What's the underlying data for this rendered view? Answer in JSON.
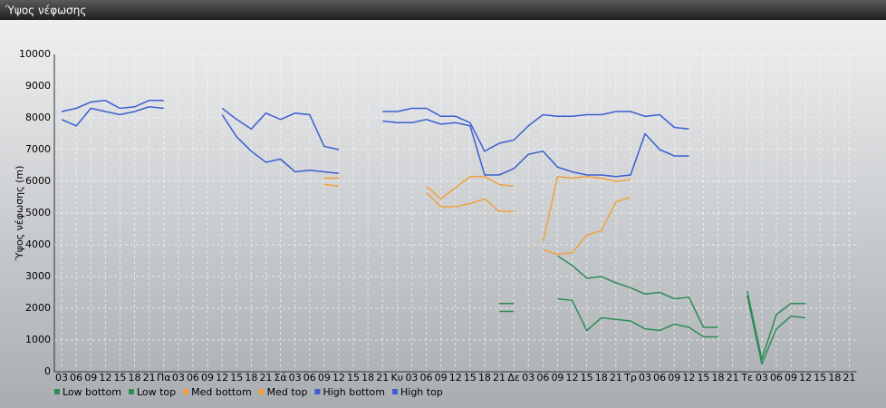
{
  "chart_data": {
    "type": "line",
    "title": "Ύψος νέφωσης",
    "y_label": "Ύψος νέφωσης (m)",
    "categories": [
      "03",
      "06",
      "09",
      "12",
      "15",
      "18",
      "21",
      "Πα",
      "03",
      "06",
      "09",
      "12",
      "15",
      "18",
      "21",
      "Σά",
      "03",
      "06",
      "09",
      "12",
      "15",
      "18",
      "21",
      "Κυ",
      "03",
      "06",
      "09",
      "12",
      "15",
      "18",
      "21",
      "Δε",
      "03",
      "06",
      "09",
      "12",
      "15",
      "18",
      "21",
      "Τρ",
      "03",
      "06",
      "09",
      "12",
      "15",
      "18",
      "21",
      "Τε",
      "03",
      "06",
      "09",
      "12",
      "15",
      "18",
      "21"
    ],
    "ylim": [
      0,
      10000
    ],
    "yticks": [
      0,
      1000,
      2000,
      3000,
      4000,
      5000,
      6000,
      7000,
      8000,
      9000,
      10000
    ],
    "grid": true,
    "series": [
      {
        "name": "Low bottom",
        "color": "#2e8b57",
        "values": [
          null,
          null,
          null,
          null,
          null,
          null,
          null,
          null,
          null,
          null,
          null,
          null,
          null,
          null,
          null,
          null,
          null,
          null,
          null,
          null,
          null,
          null,
          null,
          null,
          null,
          null,
          null,
          null,
          null,
          null,
          1900,
          1900,
          null,
          null,
          2300,
          2250,
          1300,
          1700,
          1650,
          1600,
          1350,
          1300,
          1500,
          1400,
          1100,
          1100,
          null,
          2400,
          250,
          1350,
          1750,
          1700,
          null,
          null,
          null
        ]
      },
      {
        "name": "Low top",
        "color": "#2e8b57",
        "values": [
          null,
          null,
          null,
          null,
          null,
          null,
          null,
          null,
          null,
          null,
          null,
          null,
          null,
          null,
          null,
          null,
          null,
          null,
          null,
          null,
          null,
          null,
          null,
          null,
          null,
          null,
          null,
          null,
          null,
          null,
          2150,
          2150,
          null,
          null,
          3650,
          3350,
          2950,
          3000,
          2800,
          2650,
          2450,
          2500,
          2300,
          2350,
          1400,
          1400,
          null,
          2550,
          400,
          1800,
          2150,
          2150,
          null,
          null,
          null
        ]
      },
      {
        "name": "Med bottom",
        "color": "#f0a040",
        "values": [
          null,
          null,
          null,
          null,
          null,
          null,
          null,
          null,
          null,
          null,
          null,
          null,
          null,
          null,
          null,
          null,
          null,
          null,
          5900,
          5850,
          null,
          null,
          null,
          null,
          null,
          5650,
          5200,
          5200,
          5300,
          5450,
          5050,
          5050,
          null,
          3850,
          3700,
          3750,
          4300,
          4450,
          5350,
          5500,
          null,
          null,
          null,
          null,
          null,
          null,
          null,
          null,
          null,
          null,
          null,
          null,
          null,
          null,
          null
        ]
      },
      {
        "name": "Med top",
        "color": "#f0a040",
        "values": [
          null,
          null,
          null,
          null,
          null,
          null,
          null,
          null,
          null,
          null,
          null,
          null,
          null,
          null,
          null,
          null,
          null,
          null,
          6100,
          6100,
          null,
          null,
          null,
          null,
          null,
          5850,
          5450,
          5800,
          6150,
          6150,
          5900,
          5850,
          null,
          4100,
          6150,
          6100,
          6150,
          6100,
          6000,
          6050,
          null,
          null,
          null,
          null,
          null,
          null,
          null,
          null,
          null,
          null,
          null,
          null,
          null,
          null,
          null
        ]
      },
      {
        "name": "High bottom",
        "color": "#3b5fd0",
        "values": [
          7950,
          7750,
          8300,
          8200,
          8100,
          8200,
          8350,
          8300,
          null,
          null,
          null,
          8100,
          7400,
          6950,
          6600,
          6700,
          6300,
          6350,
          6300,
          6250,
          null,
          null,
          7900,
          7850,
          7850,
          7950,
          7800,
          7850,
          7750,
          6200,
          6200,
          6400,
          6850,
          6950,
          6450,
          6300,
          6200,
          6200,
          6150,
          6200,
          7500,
          7000,
          6800,
          6800,
          null,
          null,
          null,
          null,
          null,
          null,
          null,
          null,
          null,
          null,
          null
        ]
      },
      {
        "name": "High top",
        "color": "#3b5fd0",
        "values": [
          8200,
          8300,
          8500,
          8550,
          8300,
          8350,
          8550,
          8550,
          null,
          null,
          null,
          8300,
          7950,
          7650,
          8150,
          7950,
          8150,
          8100,
          7100,
          7000,
          null,
          null,
          8200,
          8200,
          8300,
          8300,
          8050,
          8050,
          7850,
          6950,
          7200,
          7300,
          7750,
          8100,
          8050,
          8050,
          8100,
          8100,
          8200,
          8200,
          8050,
          8100,
          7700,
          7650,
          null,
          null,
          null,
          null,
          null,
          null,
          null,
          null,
          null,
          null,
          null
        ]
      }
    ]
  }
}
